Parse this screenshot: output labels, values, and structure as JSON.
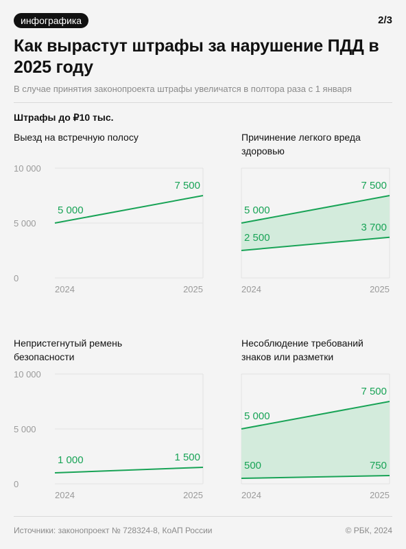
{
  "header": {
    "tag": "инфографика",
    "pager": "2/3",
    "title": "Как вырастут штрафы за нарушение ПДД в 2025 году",
    "subtitle": "В случае принятия законопроекта штрафы увеличатся в полтора раза с 1 января",
    "section": "Штрафы до ₽10 тыс."
  },
  "colors": {
    "line": "#18a356",
    "fill": "#d3ebdc",
    "grid": "#e2e2e2",
    "label": "#18a356",
    "axis": "#9a9a9a"
  },
  "chart_data": [
    {
      "type": "line",
      "title": "Выезд на встречную полосу",
      "x": [
        "2024",
        "2025"
      ],
      "ylim": [
        0,
        10000
      ],
      "yticks": [
        "10 000",
        "5 000",
        "0"
      ],
      "series": [
        {
          "values": [
            5000,
            7500
          ],
          "labels": [
            "5 000",
            "7 500"
          ]
        }
      ]
    },
    {
      "type": "area",
      "title": "Причинение легкого вреда здоровью",
      "x": [
        "2024",
        "2025"
      ],
      "ylim": [
        0,
        10000
      ],
      "series": [
        {
          "values": [
            5000,
            7500
          ],
          "labels": [
            "5 000",
            "7 500"
          ]
        },
        {
          "values": [
            2500,
            3700
          ],
          "labels": [
            "2 500",
            "3 700"
          ]
        }
      ]
    },
    {
      "type": "line",
      "title": "Непристегнутый ремень безопасности",
      "x": [
        "2024",
        "2025"
      ],
      "ylim": [
        0,
        10000
      ],
      "yticks": [
        "10 000",
        "5 000",
        "0"
      ],
      "series": [
        {
          "values": [
            1000,
            1500
          ],
          "labels": [
            "1 000",
            "1 500"
          ]
        }
      ]
    },
    {
      "type": "area",
      "title": "Несоблюдение требований знаков или разметки",
      "x": [
        "2024",
        "2025"
      ],
      "ylim": [
        0,
        10000
      ],
      "series": [
        {
          "values": [
            5000,
            7500
          ],
          "labels": [
            "5 000",
            "7 500"
          ]
        },
        {
          "values": [
            500,
            750
          ],
          "labels": [
            "500",
            "750"
          ]
        }
      ]
    }
  ],
  "footer": {
    "sources": "Источники: законопроект № 728324-8, КоАП России",
    "copyright": "© РБК, 2024"
  }
}
